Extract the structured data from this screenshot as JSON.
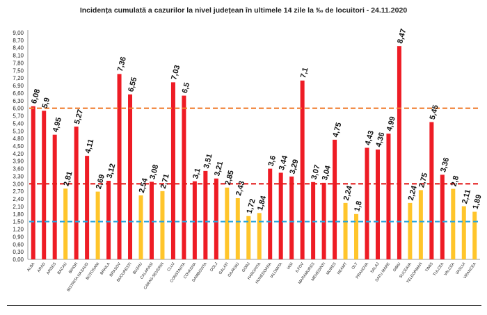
{
  "chart_data": {
    "type": "bar",
    "title": "Incidența cumulată a cazurilor la nivel județean în ultimele 14 zile la ‰ de locuitori - 24.11.2020",
    "xlabel": "",
    "ylabel": "",
    "ylim": [
      0,
      9.0
    ],
    "y_tick_step": 0.3,
    "y_decimals": 2,
    "decimal_separator": ",",
    "grid": false,
    "legend": "none",
    "categories": [
      "ALBA",
      "ARAD",
      "ARGES",
      "BACAU",
      "BIHOR",
      "BISTRITA NASAUD",
      "BOTOSANI",
      "BRAILA",
      "BRASOV",
      "BUCURESTI",
      "BUZAU",
      "CALARASI",
      "CARAS-SEVERIN",
      "CLUJ",
      "CONSTANTA",
      "COVASNA",
      "DAMBOVITA",
      "DOLJ",
      "GALATI",
      "GIURGIU",
      "GORJ",
      "HARGHITA",
      "HUNEDOARA",
      "IALOMITA",
      "IASI",
      "ILFOV",
      "MARAMURES",
      "MEHEDINTI",
      "MURES",
      "NEAMT",
      "OLT",
      "PRAHOVA",
      "SALAJ",
      "SATU MARE",
      "SIBIU",
      "SUCEAVA",
      "TELEORMAN",
      "TIMIS",
      "TULCEA",
      "VALCEA",
      "VASLUI",
      "VRANCEA"
    ],
    "values": [
      6.08,
      5.9,
      4.95,
      2.81,
      5.27,
      4.11,
      2.69,
      3.12,
      7.36,
      6.55,
      2.54,
      3.08,
      2.71,
      7.03,
      6.5,
      3.1,
      3.51,
      3.21,
      2.85,
      2.43,
      1.72,
      1.84,
      3.6,
      3.44,
      3.29,
      7.1,
      3.07,
      3.04,
      4.75,
      2.24,
      1.8,
      4.43,
      4.36,
      4.99,
      8.47,
      2.24,
      2.75,
      5.45,
      3.36,
      2.8,
      2.11,
      1.89
    ],
    "value_labels": [
      "6,08",
      "5,9",
      "4,95",
      "2,81",
      "5,27",
      "4,11",
      "2,69",
      "3,12",
      "7,36",
      "6,55",
      "2,54",
      "3,08",
      "2,71",
      "7,03",
      "6,5",
      "3,1",
      "3,51",
      "3,21",
      "2,85",
      "2,43",
      "1,72",
      "1,84",
      "3,6",
      "3,44",
      "3,29",
      "7,1",
      "3,07",
      "3,04",
      "4,75",
      "2,24",
      "1,8",
      "4,43",
      "4,36",
      "4,99",
      "8,47",
      "2,24",
      "2,75",
      "5,45",
      "3,36",
      "2,8",
      "2,11",
      "1,89"
    ],
    "bar_colors": {
      "red": "#ee1c25",
      "yellow": "#ffc52b"
    },
    "bar_color_keys": [
      "red",
      "red",
      "red",
      "yellow",
      "red",
      "red",
      "yellow",
      "red",
      "red",
      "red",
      "yellow",
      "red",
      "yellow",
      "red",
      "red",
      "red",
      "red",
      "red",
      "yellow",
      "yellow",
      "yellow",
      "yellow",
      "red",
      "red",
      "red",
      "red",
      "red",
      "red",
      "red",
      "yellow",
      "yellow",
      "red",
      "red",
      "red",
      "red",
      "yellow",
      "yellow",
      "red",
      "red",
      "yellow",
      "yellow",
      "yellow"
    ],
    "reference_lines": [
      {
        "value": 6.0,
        "color": "#f07d2e",
        "style": "dashed"
      },
      {
        "value": 3.0,
        "color": "#e41e1e",
        "style": "dashed"
      },
      {
        "value": 1.5,
        "color": "#2aa6df",
        "style": "dashed"
      }
    ]
  }
}
